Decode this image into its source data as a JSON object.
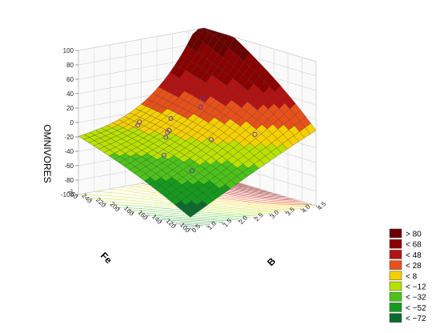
{
  "chart_data": {
    "type": "surface3d",
    "zlabel": "OMNIVORES",
    "xlabel": "B",
    "ylabel": "Fe",
    "x_ticks": [
      "0.5",
      "1.0",
      "1.5",
      "2.0",
      "2.5",
      "3.0",
      "3.5",
      "4.0",
      "4.5"
    ],
    "y_ticks": [
      "100",
      "120",
      "140",
      "160",
      "180",
      "200",
      "220",
      "240",
      "260"
    ],
    "z_ticks": [
      "-100",
      "-80",
      "-60",
      "-40",
      "-20",
      "0",
      "20",
      "40",
      "60",
      "80",
      "100"
    ],
    "xlim": [
      0.5,
      4.5
    ],
    "ylim": [
      100,
      260
    ],
    "zlim": [
      -100,
      100
    ],
    "legend": {
      "position": "bottom-right",
      "entries": [
        {
          "label": "> 80",
          "color": "#6b0000"
        },
        {
          "label": "< 68",
          "color": "#8b0000"
        },
        {
          "label": "< 48",
          "color": "#b31212"
        },
        {
          "label": "< 28",
          "color": "#e8501a"
        },
        {
          "label": "< 8",
          "color": "#f5d000"
        },
        {
          "label": "< −12",
          "color": "#b8e100"
        },
        {
          "label": "< −32",
          "color": "#4cc21a"
        },
        {
          "label": "< −52",
          "color": "#159a1e"
        },
        {
          "label": "< −72",
          "color": "#0b6b2e"
        }
      ]
    },
    "observed_points": [
      {
        "B": 1.0,
        "Fe": 120,
        "z": -30
      },
      {
        "B": 1.0,
        "Fe": 160,
        "z": -20
      },
      {
        "B": 1.5,
        "Fe": 180,
        "z": -5
      },
      {
        "B": 1.5,
        "Fe": 220,
        "z": 0
      },
      {
        "B": 2.0,
        "Fe": 200,
        "z": -8
      },
      {
        "B": 2.0,
        "Fe": 240,
        "z": -5
      },
      {
        "B": 2.5,
        "Fe": 160,
        "z": -10
      },
      {
        "B": 2.5,
        "Fe": 220,
        "z": -15
      },
      {
        "B": 3.0,
        "Fe": 240,
        "z": -8
      },
      {
        "B": 3.0,
        "Fe": 120,
        "z": 5
      },
      {
        "B": 3.5,
        "Fe": 220,
        "z": 10
      },
      {
        "B": 4.0,
        "Fe": 240,
        "z": 12
      }
    ]
  }
}
